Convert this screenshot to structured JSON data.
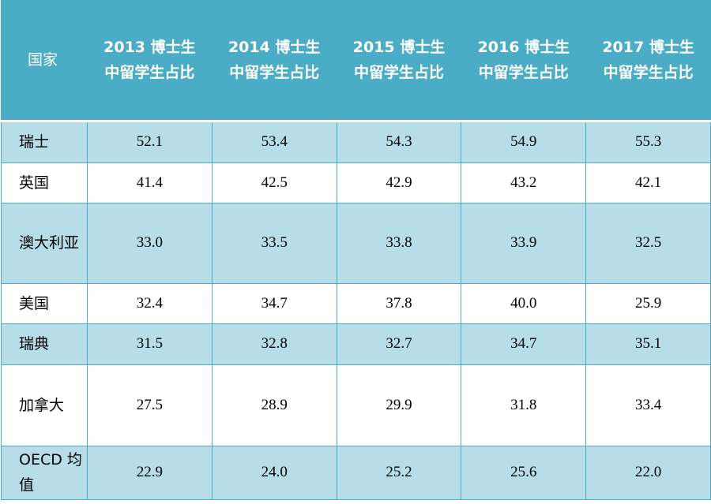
{
  "table": {
    "country_header": "国家",
    "year_headers": [
      {
        "year": "2013 博士生",
        "label": "中留学生占比"
      },
      {
        "year": "2014 博士生",
        "label": "中留学生占比"
      },
      {
        "year": "2015 博士生",
        "label": "中留学生占比"
      },
      {
        "year": "2016 博士生",
        "label": "中留学生占比"
      },
      {
        "year": "2017 博士生",
        "label": "中留学生占比"
      }
    ],
    "rows": [
      {
        "country": "瑞士",
        "values": [
          "52.1",
          "53.4",
          "54.3",
          "54.9",
          "55.3"
        ]
      },
      {
        "country": "英国",
        "values": [
          "41.4",
          "42.5",
          "42.9",
          "43.2",
          "42.1"
        ]
      },
      {
        "country": "澳大利亚",
        "values": [
          "33.0",
          "33.5",
          "33.8",
          "33.9",
          "32.5"
        ]
      },
      {
        "country": "美国",
        "values": [
          "32.4",
          "34.7",
          "37.8",
          "40.0",
          "25.9"
        ]
      },
      {
        "country": "瑞典",
        "values": [
          "31.5",
          "32.8",
          "32.7",
          "34.7",
          "35.1"
        ]
      },
      {
        "country": "加拿大",
        "values": [
          "27.5",
          "28.9",
          "29.9",
          "31.8",
          "33.4"
        ]
      },
      {
        "country": "OECD 均值",
        "values": [
          "22.9",
          "24.0",
          "25.2",
          "25.6",
          "22.0"
        ]
      }
    ],
    "colors": {
      "header_bg": "#4aacc5",
      "header_text": "#ffffff",
      "band_bg": "#b6dde8",
      "plain_bg": "#ffffff",
      "border": "#4aacc5"
    }
  }
}
